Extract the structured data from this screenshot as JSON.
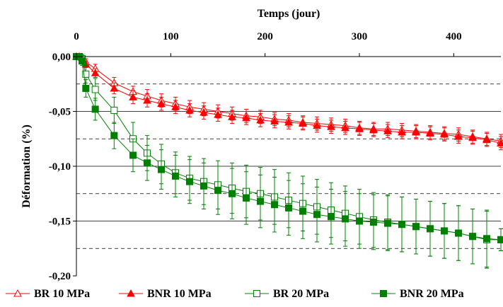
{
  "chart_data": {
    "type": "line",
    "xlabel": "Temps (jour)",
    "ylabel": "Déformation (%)",
    "xlim": [
      0,
      450
    ],
    "ylim": [
      -0.2,
      0.0
    ],
    "x_ticks": [
      0,
      100,
      200,
      300,
      400
    ],
    "x_tick_labels": [
      "0",
      "100",
      "200",
      "300",
      "400"
    ],
    "y_ticks": [
      0.0,
      -0.05,
      -0.1,
      -0.15,
      -0.2
    ],
    "y_tick_labels": [
      "0,00",
      "-0,05",
      "-0,10",
      "-0,15",
      "-0,20"
    ],
    "grid_solid_y": [
      -0.05,
      -0.1,
      -0.15
    ],
    "grid_dashed_y": [
      -0.025,
      -0.075,
      -0.125,
      -0.175
    ],
    "legend_position": "bottom",
    "series": [
      {
        "name": "BR  10 MPa",
        "color": "#ff0000",
        "marker": "triangle-open",
        "x": [
          0,
          3,
          6,
          10,
          20,
          40,
          60,
          75,
          90,
          105,
          120,
          135,
          150,
          165,
          180,
          195,
          210,
          225,
          240,
          255,
          270,
          285,
          300,
          315,
          330,
          345,
          360,
          375,
          390,
          405,
          420,
          435,
          450
        ],
        "y": [
          0,
          0,
          -0.001,
          -0.005,
          -0.011,
          -0.024,
          -0.032,
          -0.036,
          -0.04,
          -0.043,
          -0.046,
          -0.048,
          -0.05,
          -0.052,
          -0.054,
          -0.055,
          -0.057,
          -0.058,
          -0.06,
          -0.061,
          -0.062,
          -0.063,
          -0.065,
          -0.066,
          -0.066,
          -0.067,
          -0.068,
          -0.069,
          -0.07,
          -0.071,
          -0.073,
          -0.075,
          -0.077
        ],
        "err": [
          0,
          0.001,
          0.002,
          0.003,
          0.004,
          0.005,
          0.005,
          0.006,
          0.006,
          0.006,
          0.006,
          0.006,
          0.006,
          0.006,
          0.006,
          0.006,
          0.006,
          0.006,
          0.006,
          0.006,
          0.006,
          0.006,
          0.006,
          0.006,
          0.006,
          0.006,
          0.006,
          0.006,
          0.006,
          0.006,
          0.006,
          0.006,
          0.006
        ]
      },
      {
        "name": "BNR  10 MPa",
        "color": "#ff0000",
        "marker": "triangle-filled",
        "x": [
          0,
          3,
          6,
          10,
          20,
          40,
          60,
          75,
          90,
          105,
          120,
          135,
          150,
          165,
          180,
          195,
          210,
          225,
          240,
          255,
          270,
          285,
          300,
          315,
          330,
          345,
          360,
          375,
          390,
          405,
          420,
          435,
          450
        ],
        "y": [
          0,
          0,
          -0.001,
          -0.007,
          -0.015,
          -0.029,
          -0.037,
          -0.04,
          -0.043,
          -0.046,
          -0.049,
          -0.051,
          -0.053,
          -0.055,
          -0.056,
          -0.058,
          -0.059,
          -0.06,
          -0.061,
          -0.063,
          -0.064,
          -0.065,
          -0.066,
          -0.067,
          -0.068,
          -0.069,
          -0.069,
          -0.07,
          -0.071,
          -0.073,
          -0.074,
          -0.076,
          -0.079
        ],
        "err": [
          0,
          0.001,
          0.002,
          0.003,
          0.004,
          0.005,
          0.006,
          0.006,
          0.006,
          0.006,
          0.006,
          0.006,
          0.006,
          0.006,
          0.006,
          0.006,
          0.006,
          0.006,
          0.006,
          0.006,
          0.006,
          0.006,
          0.006,
          0.006,
          0.006,
          0.006,
          0.006,
          0.006,
          0.006,
          0.006,
          0.006,
          0.006,
          0.006
        ]
      },
      {
        "name": "BR  20 MPa",
        "color": "#008000",
        "marker": "square-open",
        "x": [
          0,
          3,
          6,
          10,
          20,
          40,
          60,
          75,
          90,
          105,
          120,
          135,
          150,
          165,
          180,
          195,
          210,
          225,
          240,
          255,
          270,
          285,
          300,
          315,
          330,
          345,
          360,
          375,
          390,
          405,
          420,
          435,
          450
        ],
        "y": [
          0,
          0,
          -0.002,
          -0.016,
          -0.03,
          -0.049,
          -0.075,
          -0.088,
          -0.098,
          -0.106,
          -0.111,
          -0.114,
          -0.117,
          -0.12,
          -0.123,
          -0.125,
          -0.128,
          -0.131,
          -0.134,
          -0.137,
          -0.14,
          -0.143,
          -0.146,
          -0.149,
          -0.151,
          -0.153,
          -0.155,
          -0.157,
          -0.159,
          -0.161,
          -0.164,
          -0.167,
          -0.167
        ],
        "err": [
          0,
          0.002,
          0.004,
          0.008,
          0.01,
          0.012,
          0.015,
          0.016,
          0.018,
          0.019,
          0.02,
          0.021,
          0.022,
          0.023,
          0.024,
          0.024,
          0.025,
          0.025,
          0.025,
          0.025,
          0.025,
          0.025,
          0.025,
          0.025,
          0.025,
          0.025,
          0.025,
          0.025,
          0.025,
          0.025,
          0.025,
          0.026,
          0.01
        ]
      },
      {
        "name": "BNR  20 MPa",
        "color": "#008000",
        "marker": "square-filled",
        "x": [
          0,
          3,
          6,
          10,
          20,
          40,
          60,
          75,
          90,
          105,
          120,
          135,
          150,
          165,
          180,
          195,
          210,
          225,
          240,
          255,
          270,
          285,
          300,
          315,
          330,
          345,
          360,
          375,
          390,
          405,
          420,
          435,
          450
        ],
        "y": [
          0,
          0,
          -0.004,
          -0.029,
          -0.048,
          -0.072,
          -0.09,
          -0.097,
          -0.103,
          -0.109,
          -0.114,
          -0.118,
          -0.122,
          -0.125,
          -0.129,
          -0.132,
          -0.135,
          -0.138,
          -0.141,
          -0.144,
          -0.146,
          -0.148,
          -0.15,
          -0.151,
          -0.152,
          -0.153,
          -0.155,
          -0.157,
          -0.159,
          -0.161,
          -0.164,
          -0.166,
          -0.167
        ],
        "err": [
          0,
          0.002,
          0.004,
          0.008,
          0.01,
          0.012,
          0.015,
          0.016,
          0.018,
          0.019,
          0.02,
          0.021,
          0.022,
          0.023,
          0.024,
          0.024,
          0.025,
          0.025,
          0.025,
          0.025,
          0.025,
          0.025,
          0.025,
          0.025,
          0.025,
          0.025,
          0.025,
          0.025,
          0.025,
          0.025,
          0.025,
          0.026,
          0.01
        ]
      }
    ]
  }
}
